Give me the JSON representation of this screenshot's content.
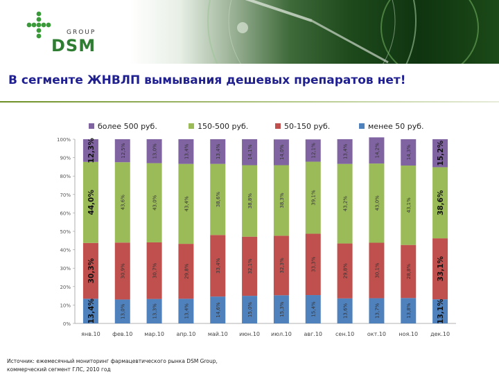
{
  "header": {
    "logo_group_text": "GROUP",
    "logo_brand_text": "DSM"
  },
  "title": "В сегменте ЖНВЛП вымывания дешевых препаратов нет!",
  "source": {
    "line1": "Источник: ежемесячный мониторинг фармацевтического рынка DSM Group,",
    "line2": "коммерческий сегмент ГЛС, 2010 год"
  },
  "colors": {
    "top": "#8064a2",
    "upper_mid": "#9bbb59",
    "lower_mid": "#c0504d",
    "bottom": "#4f81bd"
  },
  "chart_data": {
    "type": "bar",
    "stacked": true,
    "percent": true,
    "categories": [
      "янв.10",
      "фев.10",
      "мар.10",
      "апр.10",
      "май.10",
      "июн.10",
      "июл.10",
      "авг.10",
      "сен.10",
      "окт.10",
      "ноя.10",
      "дек.10"
    ],
    "series": [
      {
        "name": "менее 50 руб.",
        "color": "#4f81bd",
        "values": [
          13.4,
          13.0,
          13.3,
          13.4,
          14.6,
          15.0,
          15.3,
          15.4,
          13.6,
          13.7,
          13.8,
          13.1
        ],
        "labels": [
          "13,4%",
          "13,0%",
          "13,3%",
          "13,4%",
          "14,6%",
          "15,0%",
          "15,3%",
          "15,4%",
          "13,6%",
          "13,7%",
          "13,8%",
          "13,1%"
        ]
      },
      {
        "name": "50-150 руб.",
        "color": "#c0504d",
        "values": [
          30.3,
          30.9,
          30.7,
          29.8,
          33.4,
          32.1,
          32.3,
          33.3,
          29.8,
          30.1,
          28.8,
          33.1
        ],
        "labels": [
          "30,3%",
          "30,9%",
          "30,7%",
          "29,8%",
          "33,4%",
          "32,1%",
          "32,3%",
          "33,3%",
          "29,8%",
          "30,1%",
          "28,8%",
          "33,1%"
        ]
      },
      {
        "name": "150-500 руб.",
        "color": "#9bbb59",
        "values": [
          44.0,
          43.6,
          43.0,
          43.4,
          38.6,
          38.8,
          38.3,
          39.1,
          43.2,
          43.0,
          43.1,
          38.6
        ],
        "labels": [
          "44,0%",
          "43,6%",
          "43,0%",
          "43,4%",
          "38,6%",
          "38,8%",
          "38,3%",
          "39,1%",
          "43,2%",
          "43,0%",
          "43,1%",
          "38,6%"
        ]
      },
      {
        "name": "более 500 руб.",
        "color": "#8064a2",
        "values": [
          12.3,
          12.5,
          13.0,
          13.4,
          13.4,
          14.1,
          14.0,
          12.1,
          13.4,
          14.2,
          14.3,
          15.2
        ],
        "labels": [
          "12,3%",
          "12,5%",
          "13,0%",
          "13,4%",
          "13,4%",
          "14,1%",
          "14,0%",
          "12,1%",
          "13,4%",
          "14,2%",
          "14,3%",
          "15,2%"
        ]
      }
    ],
    "legend_order": [
      "более 500 руб.",
      "150-500 руб.",
      "50-150 руб.",
      "менее 50 руб."
    ],
    "emphasized_columns": [
      0,
      11
    ],
    "yticks": [
      "0%",
      "10%",
      "20%",
      "30%",
      "40%",
      "50%",
      "60%",
      "70%",
      "80%",
      "90%",
      "100%"
    ],
    "ylim": [
      0,
      100
    ],
    "legend_position": "top",
    "grid": false,
    "title": "",
    "xlabel": "",
    "ylabel": ""
  }
}
